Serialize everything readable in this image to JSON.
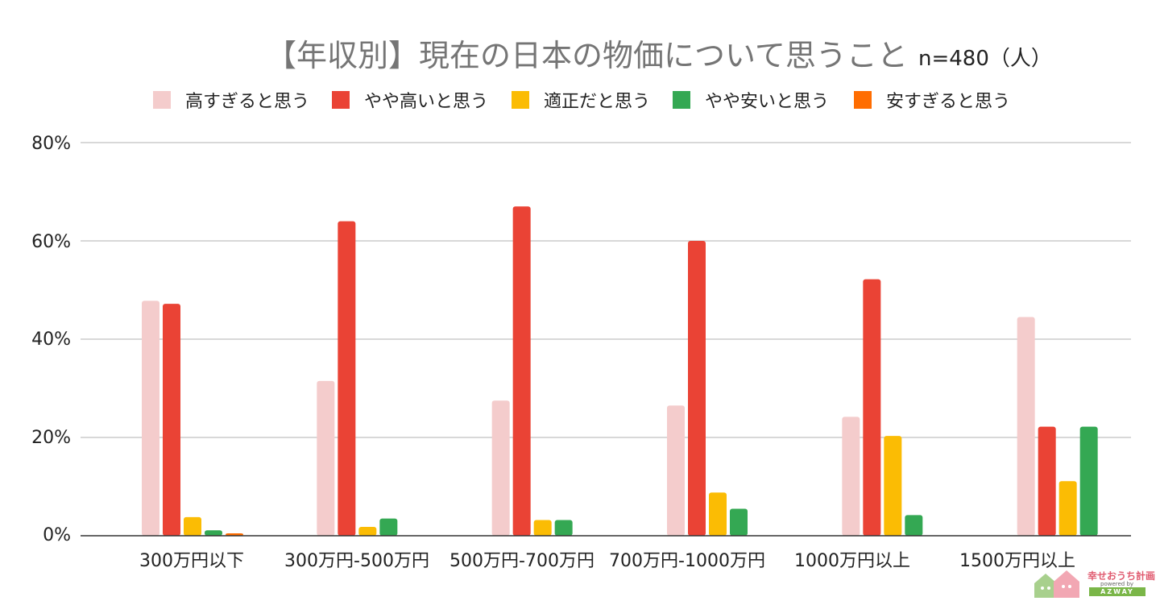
{
  "chart_data": {
    "type": "bar",
    "title": "【年収別】現在の日本の物価について思うこと",
    "sample_size": "n=480（人）",
    "categories": [
      "300万円以下",
      "300万円-500万円",
      "500万円-700万円",
      "700万円-1000万円",
      "1000万円以上",
      "1500万円以上"
    ],
    "series": [
      {
        "name": "高すぎると思う",
        "color": "#f4cccc",
        "values": [
          47.8,
          31.5,
          27.5,
          26.5,
          24.2,
          44.5
        ]
      },
      {
        "name": "やや高いと思う",
        "color": "#ea4335",
        "values": [
          47.2,
          64.0,
          67.0,
          60.0,
          52.2,
          22.2
        ]
      },
      {
        "name": "適正だと思う",
        "color": "#fbbc04",
        "values": [
          3.8,
          1.8,
          3.2,
          8.8,
          20.3,
          11.1
        ]
      },
      {
        "name": "やや安いと思う",
        "color": "#34a853",
        "values": [
          1.1,
          3.5,
          3.2,
          5.5,
          4.2,
          22.2
        ]
      },
      {
        "name": "安すぎると思う",
        "color": "#ff6d01",
        "values": [
          0.5,
          0,
          0,
          0,
          0,
          0
        ]
      }
    ],
    "yticks": [
      "0%",
      "20%",
      "40%",
      "60%",
      "80%"
    ],
    "ylim": [
      0,
      80
    ],
    "xlabel": "",
    "ylabel": "",
    "legend_position": "top",
    "grid": true
  },
  "logo": {
    "name": "幸せおうち計画",
    "sub": "powered by",
    "brand": "AZWAY"
  }
}
